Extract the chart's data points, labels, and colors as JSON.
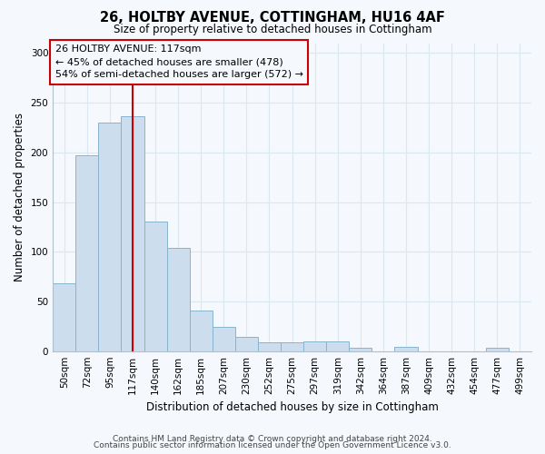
{
  "title": "26, HOLTBY AVENUE, COTTINGHAM, HU16 4AF",
  "subtitle": "Size of property relative to detached houses in Cottingham",
  "xlabel": "Distribution of detached houses by size in Cottingham",
  "ylabel": "Number of detached properties",
  "categories": [
    "50sqm",
    "72sqm",
    "95sqm",
    "117sqm",
    "140sqm",
    "162sqm",
    "185sqm",
    "207sqm",
    "230sqm",
    "252sqm",
    "275sqm",
    "297sqm",
    "319sqm",
    "342sqm",
    "364sqm",
    "387sqm",
    "409sqm",
    "432sqm",
    "454sqm",
    "477sqm",
    "499sqm"
  ],
  "values": [
    68,
    197,
    230,
    236,
    130,
    104,
    41,
    24,
    14,
    9,
    9,
    10,
    10,
    3,
    0,
    4,
    0,
    0,
    0,
    3,
    0
  ],
  "bar_color": "#ccdded",
  "bar_edgecolor": "#88b4d0",
  "red_line_index": 3,
  "annotation_line1": "26 HOLTBY AVENUE: 117sqm",
  "annotation_line2": "← 45% of detached houses are smaller (478)",
  "annotation_line3": "54% of semi-detached houses are larger (572) →",
  "vline_color": "#cc0000",
  "annotation_box_edgecolor": "#cc0000",
  "ylim": [
    0,
    310
  ],
  "background_color": "#f5f8fc",
  "grid_color": "#dce8f0",
  "footer1": "Contains HM Land Registry data © Crown copyright and database right 2024.",
  "footer2": "Contains public sector information licensed under the Open Government Licence v3.0."
}
